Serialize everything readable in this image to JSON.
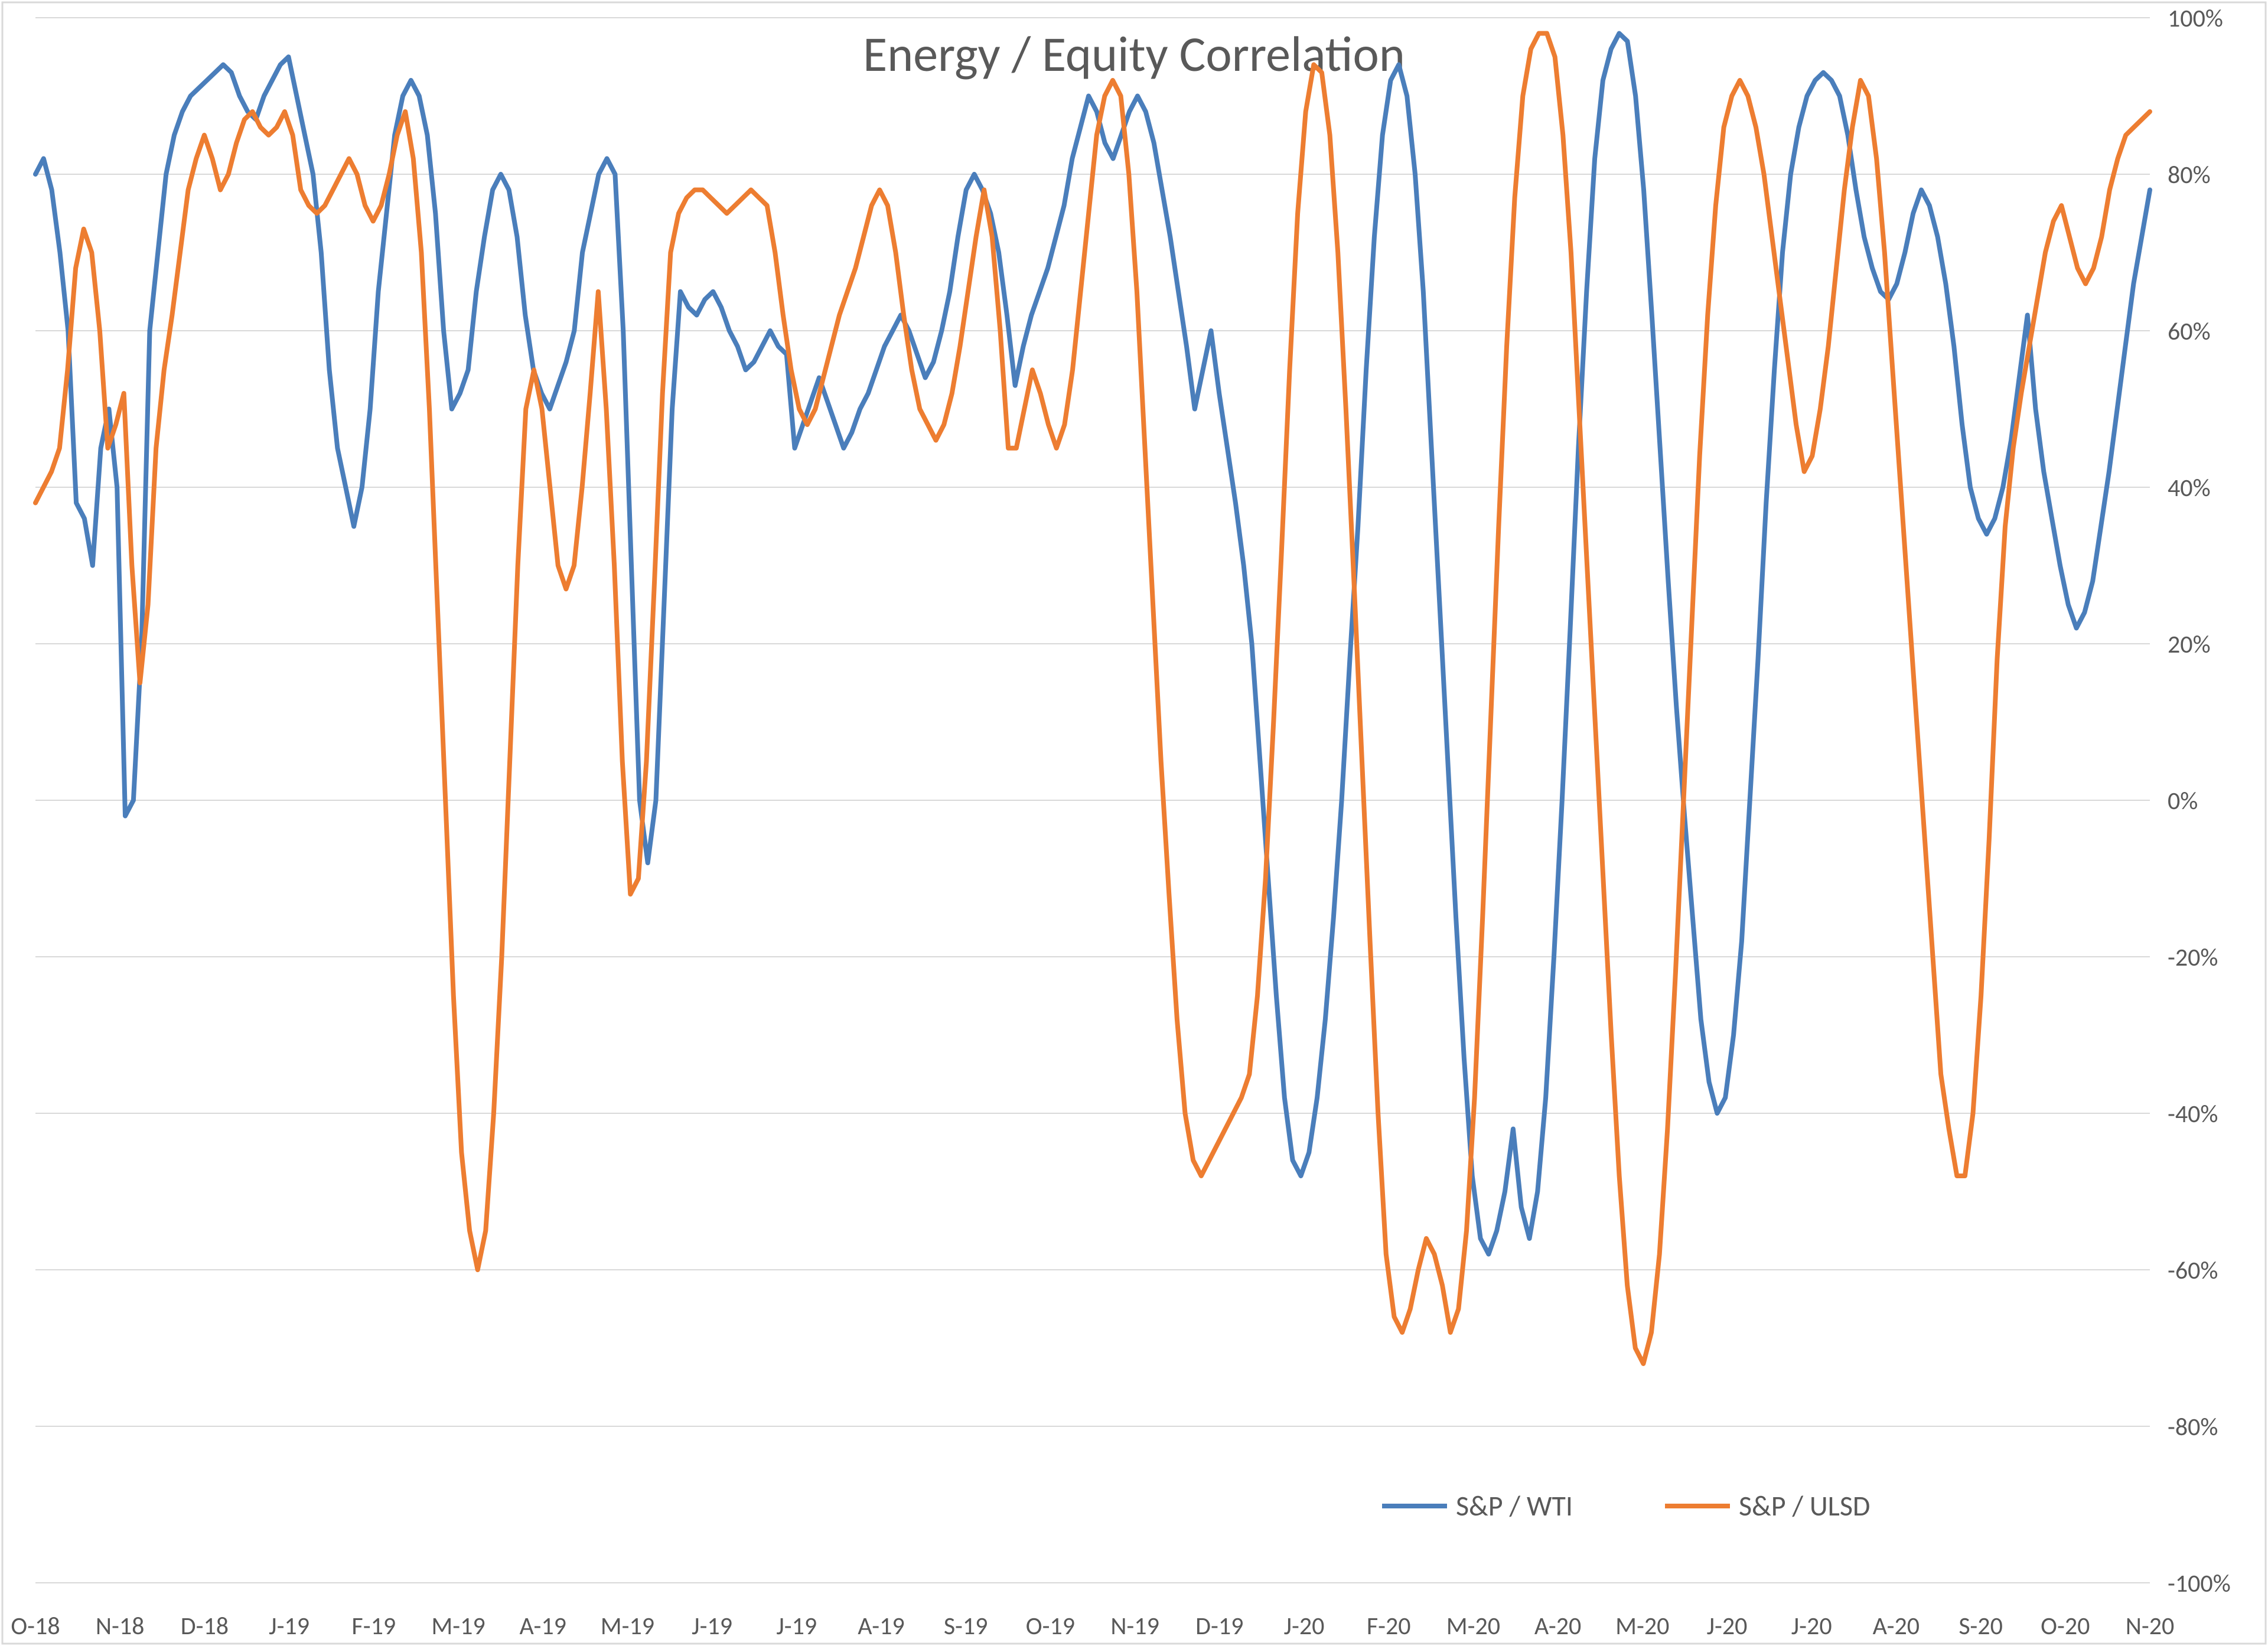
{
  "chart": {
    "type": "line",
    "title": "Energy / Equity Correlation",
    "title_fontsize": 84,
    "background_color": "#ffffff",
    "border_color": "#d9d9d9",
    "grid_color": "#d9d9d9",
    "axis_text_color": "#595959",
    "axis_fontsize": 42,
    "legend_fontsize": 48,
    "line_width": 8,
    "ylim": [
      -100,
      100
    ],
    "ytick_step": 20,
    "ytick_labels": [
      "-100%",
      "-80%",
      "-60%",
      "-40%",
      "-20%",
      "0%",
      "20%",
      "40%",
      "60%",
      "80%",
      "100%"
    ],
    "x_categories": [
      "O-18",
      "N-18",
      "D-18",
      "J-19",
      "F-19",
      "M-19",
      "A-19",
      "M-19",
      "J-19",
      "J-19",
      "A-19",
      "S-19",
      "O-19",
      "N-19",
      "D-19",
      "J-20",
      "F-20",
      "M-20",
      "A-20",
      "M-20",
      "J-20",
      "J-20",
      "A-20",
      "S-20",
      "O-20",
      "N-20"
    ],
    "legend": {
      "items": [
        {
          "label": "S&P / WTI",
          "color": "#4a7ebb"
        },
        {
          "label": "S&P / ULSD",
          "color": "#ed7d31"
        }
      ]
    },
    "series": [
      {
        "name": "wti",
        "label": "S&P / WTI",
        "color": "#4a7ebb",
        "values": [
          80,
          82,
          78,
          70,
          60,
          38,
          36,
          30,
          45,
          50,
          40,
          -2,
          0,
          20,
          60,
          70,
          80,
          85,
          88,
          90,
          91,
          92,
          93,
          94,
          93,
          90,
          88,
          87,
          90,
          92,
          94,
          95,
          90,
          85,
          80,
          70,
          55,
          45,
          40,
          35,
          40,
          50,
          65,
          75,
          85,
          90,
          92,
          90,
          85,
          75,
          60,
          50,
          52,
          55,
          65,
          72,
          78,
          80,
          78,
          72,
          62,
          55,
          52,
          50,
          53,
          56,
          60,
          70,
          75,
          80,
          82,
          80,
          60,
          30,
          0,
          -8,
          0,
          25,
          50,
          65,
          63,
          62,
          64,
          65,
          63,
          60,
          58,
          55,
          56,
          58,
          60,
          58,
          57,
          45,
          48,
          51,
          54,
          51,
          48,
          45,
          47,
          50,
          52,
          55,
          58,
          60,
          62,
          60,
          57,
          54,
          56,
          60,
          65,
          72,
          78,
          80,
          78,
          75,
          70,
          62,
          53,
          58,
          62,
          65,
          68,
          72,
          76,
          82,
          86,
          90,
          88,
          84,
          82,
          85,
          88,
          90,
          88,
          84,
          78,
          72,
          65,
          58,
          50,
          55,
          60,
          52,
          45,
          38,
          30,
          20,
          5,
          -10,
          -25,
          -38,
          -46,
          -48,
          -45,
          -38,
          -28,
          -15,
          0,
          18,
          35,
          55,
          72,
          85,
          92,
          94,
          90,
          80,
          65,
          45,
          25,
          5,
          -15,
          -33,
          -48,
          -56,
          -58,
          -55,
          -50,
          -42,
          -52,
          -56,
          -50,
          -38,
          -20,
          0,
          22,
          45,
          65,
          82,
          92,
          96,
          98,
          97,
          90,
          78,
          62,
          45,
          28,
          12,
          -2,
          -15,
          -28,
          -36,
          -40,
          -38,
          -30,
          -18,
          0,
          18,
          38,
          55,
          70,
          80,
          86,
          90,
          92,
          93,
          92,
          90,
          85,
          78,
          72,
          68,
          65,
          64,
          66,
          70,
          75,
          78,
          76,
          72,
          66,
          58,
          48,
          40,
          36,
          34,
          36,
          40,
          46,
          54,
          62,
          50,
          42,
          36,
          30,
          25,
          22,
          24,
          28,
          35,
          42,
          50,
          58,
          66,
          72,
          78
        ]
      },
      {
        "name": "ulsd",
        "label": "S&P / ULSD",
        "color": "#ed7d31",
        "values": [
          38,
          40,
          42,
          45,
          55,
          68,
          73,
          70,
          60,
          45,
          48,
          52,
          30,
          15,
          25,
          45,
          55,
          62,
          70,
          78,
          82,
          85,
          82,
          78,
          80,
          84,
          87,
          88,
          86,
          85,
          86,
          88,
          85,
          78,
          76,
          75,
          76,
          78,
          80,
          82,
          80,
          76,
          74,
          76,
          80,
          85,
          88,
          82,
          70,
          50,
          25,
          0,
          -25,
          -45,
          -55,
          -60,
          -55,
          -40,
          -20,
          5,
          30,
          50,
          55,
          50,
          40,
          30,
          27,
          30,
          40,
          52,
          65,
          50,
          30,
          5,
          -12,
          -10,
          5,
          28,
          52,
          70,
          75,
          77,
          78,
          78,
          77,
          76,
          75,
          76,
          77,
          78,
          77,
          76,
          70,
          62,
          55,
          50,
          48,
          50,
          54,
          58,
          62,
          65,
          68,
          72,
          76,
          78,
          76,
          70,
          62,
          55,
          50,
          48,
          46,
          48,
          52,
          58,
          65,
          72,
          78,
          72,
          60,
          45,
          45,
          50,
          55,
          52,
          48,
          45,
          48,
          55,
          65,
          75,
          85,
          90,
          92,
          90,
          80,
          65,
          45,
          25,
          5,
          -12,
          -28,
          -40,
          -46,
          -48,
          -46,
          -44,
          -42,
          -40,
          -38,
          -35,
          -25,
          -10,
          10,
          32,
          55,
          75,
          88,
          94,
          93,
          85,
          70,
          50,
          28,
          5,
          -18,
          -40,
          -58,
          -66,
          -68,
          -65,
          -60,
          -56,
          -58,
          -62,
          -68,
          -65,
          -55,
          -38,
          -15,
          10,
          35,
          58,
          77,
          90,
          96,
          98,
          98,
          95,
          85,
          70,
          50,
          30,
          10,
          -10,
          -30,
          -48,
          -62,
          -70,
          -72,
          -68,
          -58,
          -42,
          -22,
          0,
          22,
          44,
          62,
          76,
          86,
          90,
          92,
          90,
          86,
          80,
          72,
          64,
          56,
          48,
          42,
          44,
          50,
          58,
          68,
          78,
          86,
          92,
          90,
          82,
          70,
          55,
          40,
          25,
          10,
          -5,
          -20,
          -35,
          -42,
          -48,
          -48,
          -40,
          -25,
          -5,
          18,
          35,
          45,
          52,
          58,
          64,
          70,
          74,
          76,
          72,
          68,
          66,
          68,
          72,
          78,
          82,
          85,
          86,
          87,
          88
        ]
      }
    ]
  }
}
